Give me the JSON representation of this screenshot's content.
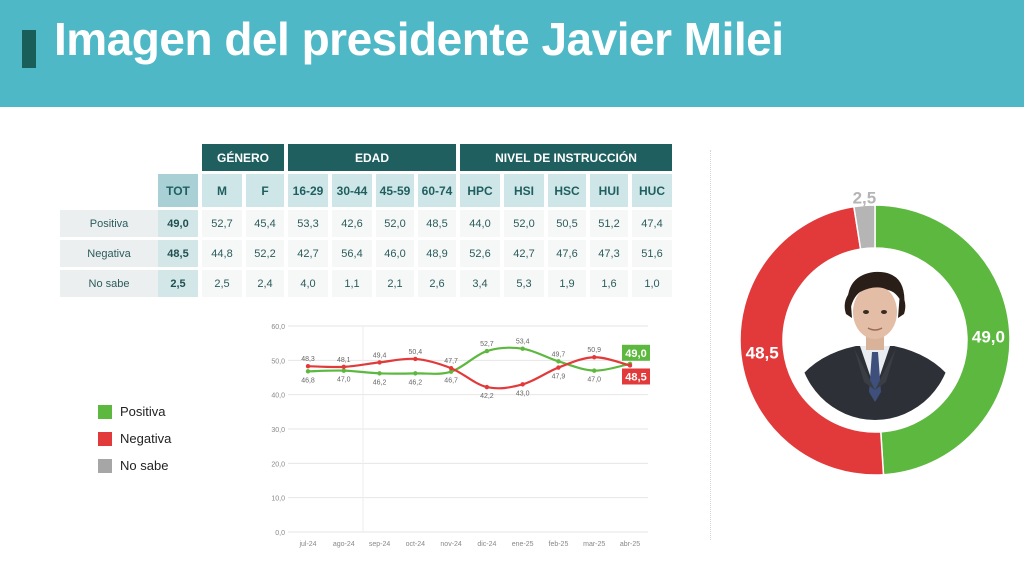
{
  "title": "Imagen del presidente Javier Milei",
  "table": {
    "groups": [
      "GÉNERO",
      "EDAD",
      "NIVEL DE INSTRUCCIÓN"
    ],
    "columns": [
      "TOT",
      "M",
      "F",
      "16-29",
      "30-44",
      "45-59",
      "60-74",
      "HPC",
      "HSI",
      "HSC",
      "HUI",
      "HUC"
    ],
    "rows": [
      {
        "label": "Positiva",
        "values": [
          "49,0",
          "52,7",
          "45,4",
          "53,3",
          "42,6",
          "52,0",
          "48,5",
          "44,0",
          "52,0",
          "50,5",
          "51,2",
          "47,4"
        ]
      },
      {
        "label": "Negativa",
        "values": [
          "48,5",
          "44,8",
          "52,2",
          "42,7",
          "56,4",
          "46,0",
          "48,9",
          "52,6",
          "42,7",
          "47,6",
          "47,3",
          "51,6"
        ]
      },
      {
        "label": "No sabe",
        "values": [
          "2,5",
          "2,5",
          "2,4",
          "4,0",
          "1,1",
          "2,1",
          "2,6",
          "3,4",
          "5,3",
          "1,9",
          "1,6",
          "1,0"
        ]
      }
    ]
  },
  "legend": [
    {
      "label": "Positiva",
      "color": "#5cb83e"
    },
    {
      "label": "Negativa",
      "color": "#e23a3a"
    },
    {
      "label": "No sabe",
      "color": "#a6a6a6"
    }
  ],
  "chart_data": [
    {
      "type": "line",
      "x": [
        "jul-24",
        "ago-24",
        "sep-24",
        "oct-24",
        "nov-24",
        "dic-24",
        "ene-25",
        "feb-25",
        "mar-25",
        "abr-25"
      ],
      "y_ticks": [
        "0,0",
        "10,0",
        "20,0",
        "30,0",
        "40,0",
        "50,0",
        "60,0"
      ],
      "ylim": [
        0,
        60
      ],
      "grid": true,
      "series": [
        {
          "name": "Positiva",
          "color": "#5cb83e",
          "values": [
            46.8,
            47.0,
            46.2,
            46.2,
            46.7,
            52.7,
            53.4,
            49.7,
            47.0,
            49.0
          ],
          "labels": [
            "46,8",
            "47,0",
            "46,2",
            "46,2",
            "46,7",
            "52,7",
            "53,4",
            "49,7",
            "47,0",
            "49,0"
          ]
        },
        {
          "name": "Negativa",
          "color": "#e23a3a",
          "values": [
            48.3,
            48.1,
            49.4,
            50.4,
            47.7,
            42.2,
            43.0,
            47.9,
            50.9,
            48.5
          ],
          "labels": [
            "48,3",
            "48,1",
            "49,4",
            "50,4",
            "47,7",
            "42,2",
            "43,0",
            "47,9",
            "50,9",
            "48,5"
          ]
        }
      ]
    },
    {
      "type": "pie",
      "categories": [
        "Positiva",
        "Negativa",
        "No sabe"
      ],
      "values": [
        49.0,
        48.5,
        2.5
      ],
      "labels": [
        "49,0",
        "48,5",
        "2,5"
      ],
      "colors": [
        "#5cb83e",
        "#e23a3a",
        "#b5b5b5"
      ]
    }
  ]
}
